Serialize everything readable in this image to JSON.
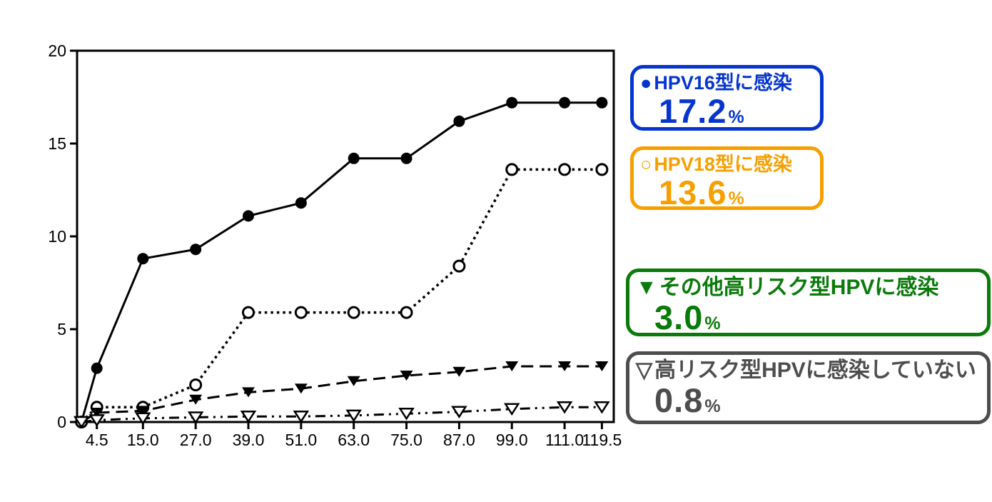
{
  "page": {
    "background": "#ffffff"
  },
  "chart_data": {
    "type": "line",
    "title": "",
    "xlabel": "",
    "ylabel": "",
    "axis_color": "#000000",
    "grid": false,
    "ylim": [
      0,
      20
    ],
    "xlim": [
      0,
      122.2
    ],
    "y_ticks": [
      0,
      5,
      10,
      15,
      20
    ],
    "x_ticks": [
      4.5,
      15,
      27,
      39,
      51,
      63,
      75,
      87,
      99,
      111,
      119.5
    ],
    "x_tick_labels": [
      "4.5",
      "15.0",
      "27.0",
      "39.0",
      "51.0",
      "63.0",
      "75.0",
      "87.0",
      "99.0",
      "111.0",
      "119.5"
    ],
    "x": [
      1,
      4.5,
      15,
      27,
      39,
      51,
      63,
      75,
      87,
      99,
      111,
      119.5
    ],
    "series": [
      {
        "name": "HPV16型に感染",
        "marker": "filled-circle",
        "line": "solid",
        "final_pct": "17.2%",
        "values": [
          0,
          2.9,
          8.8,
          9.3,
          11.1,
          11.8,
          14.2,
          14.2,
          16.2,
          17.2,
          17.2,
          17.2
        ]
      },
      {
        "name": "HPV18型に感染",
        "marker": "open-circle",
        "line": "dotted",
        "final_pct": "13.6%",
        "values": [
          0,
          0.8,
          0.8,
          2.0,
          5.9,
          5.9,
          5.9,
          5.9,
          8.4,
          13.6,
          13.6,
          13.6
        ]
      },
      {
        "name": "その他高リスク型HPVに感染",
        "marker": "filled-triangle",
        "line": "dashed",
        "final_pct": "3.0%",
        "values": [
          0,
          0.5,
          0.6,
          1.2,
          1.6,
          1.8,
          2.2,
          2.5,
          2.7,
          3.0,
          3.0,
          3.0
        ]
      },
      {
        "name": "高リスク型HPVに感染していない",
        "marker": "open-triangle",
        "line": "dashdotdot",
        "final_pct": "0.8%",
        "values": [
          0,
          0.1,
          0.2,
          0.25,
          0.3,
          0.3,
          0.35,
          0.45,
          0.55,
          0.7,
          0.8,
          0.8
        ]
      }
    ],
    "legend_position": "right"
  },
  "legend": {
    "items": [
      {
        "marker": "●",
        "label": "HPV16型に感染",
        "value": "17.2",
        "unit": "%",
        "color": "#0535CE"
      },
      {
        "marker": "○",
        "label": "HPV18型に感染",
        "value": "13.6",
        "unit": "%",
        "color": "#F79F00"
      },
      {
        "marker": "▼",
        "label": "その他高リスク型HPVに感染",
        "value": "3.0",
        "unit": "%",
        "color": "#0A7A0A"
      },
      {
        "marker": "▽",
        "label": "高リスク型HPVに感染していない",
        "value": "0.8",
        "unit": "%",
        "color": "#4D4D4D"
      }
    ]
  }
}
